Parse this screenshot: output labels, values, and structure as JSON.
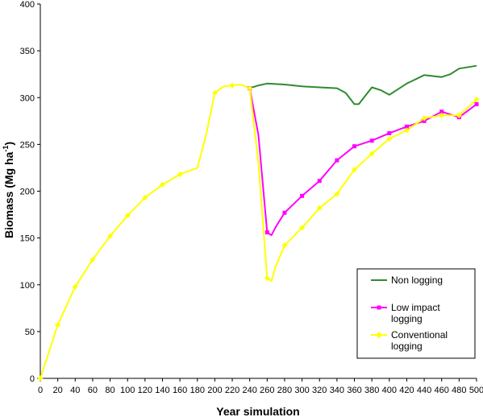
{
  "chart_data": {
    "type": "line",
    "title": "",
    "xlabel": "Year simulation",
    "ylabel": "Biomass (Mg ha",
    "ylabel_sup": "-1",
    "ylabel_close": ")",
    "xlim": [
      0,
      500
    ],
    "ylim": [
      0,
      400
    ],
    "x_ticks": [
      0,
      20,
      40,
      60,
      80,
      100,
      120,
      140,
      160,
      180,
      200,
      220,
      240,
      260,
      280,
      300,
      320,
      340,
      360,
      380,
      400,
      420,
      440,
      460,
      480,
      500
    ],
    "y_ticks": [
      0,
      50,
      100,
      150,
      200,
      250,
      300,
      350,
      400
    ],
    "grid": false,
    "legend_position": "bottom-right",
    "series": [
      {
        "name": "Non logging",
        "color": "#2e8b2e",
        "marker": "none",
        "x": [
          240,
          250,
          260,
          280,
          300,
          320,
          340,
          350,
          360,
          365,
          380,
          390,
          400,
          420,
          440,
          450,
          460,
          470,
          480,
          500
        ],
        "y": [
          310,
          313,
          315,
          314,
          312,
          311,
          310,
          305,
          293,
          293,
          311,
          308,
          303,
          315,
          324,
          323,
          322,
          325,
          331,
          334
        ]
      },
      {
        "name": "Low impact logging",
        "color": "#ff00ff",
        "marker": "square",
        "x": [
          240,
          250,
          260,
          265,
          270,
          280,
          300,
          320,
          340,
          360,
          380,
          400,
          420,
          440,
          460,
          480,
          500
        ],
        "y": [
          310,
          260,
          156,
          153,
          162,
          177,
          195,
          211,
          233,
          248,
          254,
          262,
          269,
          275,
          285,
          279,
          293
        ],
        "marker_x": [
          240,
          260,
          280,
          300,
          320,
          340,
          360,
          380,
          400,
          420,
          440,
          460,
          480,
          500
        ]
      },
      {
        "name": "Conventional logging",
        "color": "#ffff00",
        "marker": "diamond",
        "x": [
          0,
          20,
          40,
          60,
          80,
          100,
          120,
          140,
          160,
          180,
          190,
          200,
          210,
          220,
          230,
          240,
          250,
          260,
          265,
          270,
          280,
          300,
          320,
          340,
          360,
          380,
          400,
          420,
          440,
          460,
          480,
          500
        ],
        "y": [
          0,
          57,
          98,
          127,
          152,
          174,
          193,
          207,
          218,
          225,
          260,
          305,
          312,
          313,
          314,
          310,
          230,
          107,
          104,
          120,
          142,
          161,
          182,
          197,
          223,
          240,
          256,
          265,
          278,
          281,
          281,
          298
        ],
        "marker_x": [
          0,
          20,
          40,
          60,
          80,
          100,
          120,
          140,
          160,
          200,
          220,
          240,
          260,
          280,
          300,
          320,
          340,
          360,
          380,
          400,
          420,
          440,
          460,
          480,
          500
        ]
      }
    ]
  }
}
